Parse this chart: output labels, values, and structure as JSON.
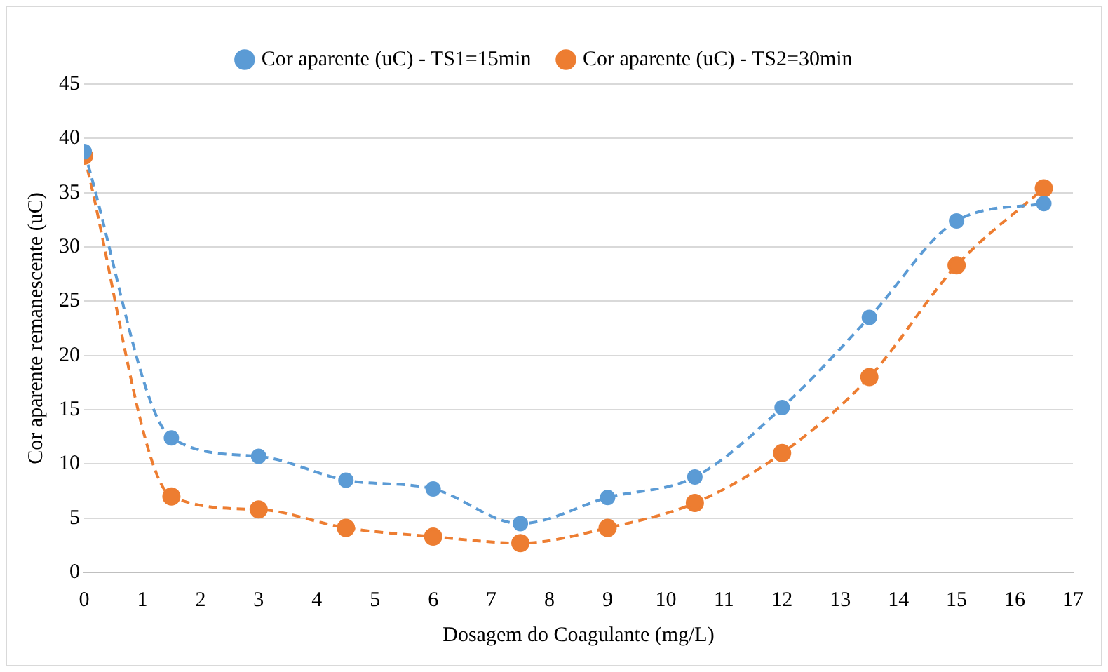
{
  "chart_data": {
    "type": "line",
    "xlabel": "Dosagem do Coagulante (mg/L)",
    "ylabel": "Cor aparente remanescente (uC)",
    "x": [
      0,
      1.5,
      3,
      4.5,
      6,
      7.5,
      9,
      10.5,
      12,
      13.5,
      15,
      16.5
    ],
    "series": [
      {
        "name": "Cor aparente (uC) - TS1=15min",
        "color": "#5b9bd5",
        "values": [
          38.8,
          12.4,
          10.7,
          8.5,
          7.7,
          4.5,
          6.9,
          8.8,
          15.2,
          23.5,
          32.4,
          34.0
        ]
      },
      {
        "name": "Cor aparente (uC) - TS2=30min",
        "color": "#ed7d31",
        "values": [
          38.4,
          7.0,
          5.8,
          4.1,
          3.3,
          2.7,
          4.1,
          6.4,
          11.0,
          18.0,
          28.3,
          35.4
        ]
      }
    ],
    "xlim": [
      0,
      17
    ],
    "xticks": [
      0,
      1,
      2,
      3,
      4,
      5,
      6,
      7,
      8,
      9,
      10,
      11,
      12,
      13,
      14,
      15,
      16,
      17
    ],
    "ylim": [
      0,
      45
    ],
    "yticks": [
      0,
      5,
      10,
      15,
      20,
      25,
      30,
      35,
      40,
      45
    ],
    "grid": "y",
    "legend": "top",
    "marker": "circle",
    "line_style": "dashed"
  }
}
